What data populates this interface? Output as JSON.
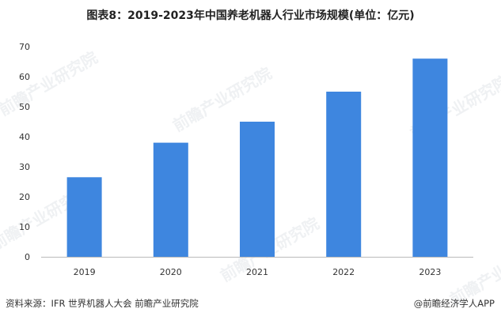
{
  "title": "图表8：2019-2023年中国养老机器人行业市场规模(单位：亿元)",
  "source": "资料来源：IFR 世界机器人大会 前瞻产业研究院",
  "brand": "@前瞻经济学人APP",
  "watermark": "前瞻产业研究院",
  "colors": {
    "bar": "#3e86df",
    "axis": "#bbbbbb",
    "text": "#333333"
  },
  "chart_data": {
    "type": "bar",
    "categories": [
      "2019",
      "2020",
      "2021",
      "2022",
      "2023"
    ],
    "values": [
      26.5,
      38,
      45,
      55,
      66
    ],
    "title": "图表8：2019-2023年中国养老机器人行业市场规模(单位：亿元)",
    "xlabel": "",
    "ylabel": "",
    "ylim": [
      0,
      70
    ],
    "yticks": [
      0,
      10,
      20,
      30,
      40,
      50,
      60,
      70
    ],
    "grid": false,
    "legend": "none"
  }
}
